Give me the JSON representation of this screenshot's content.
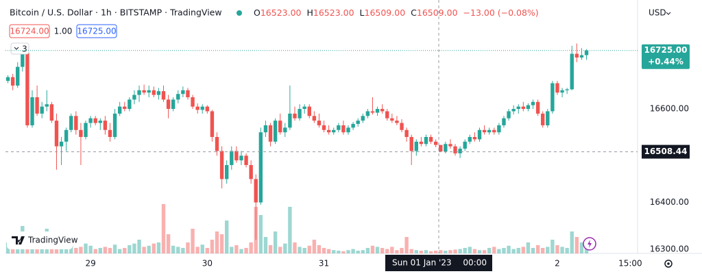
{
  "header": {
    "title": "Bitcoin / U.S. Dollar · 1h · BITSTAMP · TradingView",
    "ohlc": [
      {
        "key": "O",
        "value": "16523.00"
      },
      {
        "key": "H",
        "value": "16523.00"
      },
      {
        "key": "L",
        "value": "16509.00"
      },
      {
        "key": "C",
        "value": "16509.00"
      }
    ],
    "change": "−13.00 (−0.08%)",
    "bid": "16724.00",
    "spread": "1.00",
    "ask": "16725.00",
    "indicators": "3",
    "currency": "USD",
    "logo": "TradingView"
  },
  "chart_data": {
    "type": "candlestick",
    "categories": [
      null,
      null,
      null,
      null,
      null,
      null,
      null,
      null,
      null,
      null,
      null,
      null,
      null,
      null,
      null,
      null,
      null,
      "29",
      null,
      null,
      null,
      null,
      null,
      null,
      null,
      null,
      null,
      null,
      null,
      null,
      null,
      null,
      null,
      null,
      null,
      null,
      null,
      null,
      null,
      null,
      null,
      "30",
      null,
      null,
      null,
      null,
      null,
      null,
      null,
      null,
      null,
      null,
      null,
      null,
      null,
      null,
      null,
      null,
      null,
      null,
      null,
      null,
      null,
      null,
      null,
      "31",
      null,
      null,
      null,
      null,
      null,
      null,
      null,
      null,
      null,
      null,
      null,
      null,
      null,
      null,
      null,
      null,
      null,
      null,
      null,
      null,
      null,
      null,
      null,
      null,
      null,
      null,
      null,
      null,
      null,
      null,
      null,
      null,
      null,
      null,
      null,
      null,
      null,
      null,
      null,
      null,
      null,
      null,
      null,
      null,
      null,
      null,
      null,
      "2",
      null,
      null,
      null,
      null,
      null,
      null,
      null,
      null,
      null,
      null,
      null,
      null,
      null,
      null,
      "15:00",
      null
    ],
    "open": [
      16660,
      16668,
      16650,
      16690,
      16720,
      16565,
      16625,
      16590,
      16605,
      16610,
      16575,
      16520,
      16530,
      16555,
      16585,
      16555,
      16540,
      16570,
      16580,
      16570,
      16575,
      16555,
      16540,
      16590,
      16605,
      16600,
      16620,
      16630,
      16640,
      16635,
      16640,
      16630,
      16638,
      16620,
      16600,
      16620,
      16632,
      16640,
      16625,
      16605,
      16598,
      16605,
      16595,
      16540,
      16510,
      16450,
      16480,
      16510,
      16490,
      16500,
      16480,
      16450,
      16400,
      16550,
      16565,
      16530,
      16575,
      16550,
      16560,
      16590,
      16580,
      16600,
      16605,
      16585,
      16575,
      16565,
      16555,
      16550,
      16555,
      16565,
      16550,
      16560,
      16568,
      16575,
      16585,
      16595,
      16592,
      16600,
      16595,
      16580,
      16575,
      16570,
      16555,
      16540,
      16510,
      16530,
      16525,
      16540,
      16530,
      16523,
      16509,
      16525,
      16520,
      16505,
      16515,
      16530,
      16540,
      16535,
      16555,
      16550,
      16555,
      16550,
      16565,
      16580,
      16595,
      16600,
      16605,
      16600,
      16608,
      16615,
      16590,
      16565,
      16595,
      16655,
      16635,
      16640,
      16642,
      16718,
      16710,
      16715,
      null,
      null,
      null,
      null,
      null,
      null,
      null,
      null,
      null,
      null
    ],
    "high": [
      16672,
      16675,
      16700,
      16730,
      16728,
      16640,
      16650,
      16615,
      16640,
      16615,
      16590,
      16540,
      16560,
      16590,
      16595,
      16570,
      16575,
      16585,
      16585,
      16580,
      16585,
      16570,
      16600,
      16615,
      16615,
      16625,
      16640,
      16650,
      16652,
      16650,
      16648,
      16645,
      16650,
      16630,
      16625,
      16640,
      16648,
      16645,
      16630,
      16612,
      16610,
      16608,
      16598,
      16550,
      16520,
      16490,
      16520,
      16520,
      16510,
      16505,
      16490,
      16460,
      16560,
      16575,
      16570,
      16580,
      16590,
      16570,
      16650,
      16605,
      16610,
      16610,
      16610,
      16595,
      16590,
      16575,
      16565,
      16560,
      16570,
      16575,
      16565,
      16572,
      16580,
      16590,
      16600,
      16625,
      16605,
      16610,
      16600,
      16590,
      16585,
      16578,
      16560,
      16545,
      16535,
      16540,
      16545,
      16545,
      16535,
      16523,
      16530,
      16535,
      16525,
      16520,
      16535,
      16545,
      16550,
      16560,
      16565,
      16560,
      16560,
      16570,
      16585,
      16600,
      16608,
      16610,
      16615,
      16612,
      16620,
      16620,
      16595,
      16600,
      16660,
      16660,
      16645,
      16645,
      16735,
      16740,
      16730,
      16728,
      null,
      null,
      null,
      null,
      null,
      null,
      null,
      null,
      null,
      null
    ],
    "low": [
      16655,
      16640,
      16645,
      16680,
      16560,
      16560,
      16585,
      16580,
      16595,
      16570,
      16470,
      16480,
      16510,
      16550,
      16545,
      16480,
      16535,
      16560,
      16565,
      16555,
      16545,
      16530,
      16535,
      16585,
      16595,
      16595,
      16610,
      16615,
      16630,
      16625,
      16625,
      16620,
      16615,
      16580,
      16595,
      16612,
      16625,
      16620,
      16600,
      16590,
      16590,
      16590,
      16530,
      16500,
      16430,
      16440,
      16470,
      16485,
      16480,
      16475,
      16440,
      16320,
      16395,
      16540,
      16520,
      16525,
      16545,
      16540,
      16555,
      16575,
      16575,
      16590,
      16580,
      16570,
      16560,
      16550,
      16545,
      16545,
      16550,
      16545,
      16545,
      16555,
      16562,
      16570,
      16580,
      16588,
      16585,
      16590,
      16575,
      16570,
      16565,
      16550,
      16530,
      16480,
      16500,
      16520,
      16520,
      16525,
      16518,
      16509,
      16505,
      16515,
      16500,
      16495,
      16510,
      16525,
      16530,
      16530,
      16545,
      16545,
      16545,
      16545,
      16560,
      16575,
      16588,
      16590,
      16595,
      16595,
      16600,
      16585,
      16560,
      16560,
      16590,
      16630,
      16625,
      16632,
      16640,
      16700,
      16705,
      16705,
      null,
      null,
      null,
      null,
      null,
      null,
      null,
      null,
      null,
      null
    ],
    "close": [
      16668,
      16650,
      16690,
      16720,
      16565,
      16625,
      16590,
      16605,
      16610,
      16575,
      16520,
      16530,
      16555,
      16585,
      16555,
      16540,
      16570,
      16580,
      16570,
      16575,
      16555,
      16540,
      16590,
      16605,
      16600,
      16620,
      16630,
      16640,
      16635,
      16640,
      16630,
      16638,
      16620,
      16600,
      16620,
      16632,
      16640,
      16625,
      16605,
      16598,
      16605,
      16595,
      16540,
      16510,
      16450,
      16480,
      16510,
      16490,
      16500,
      16480,
      16450,
      16400,
      16550,
      16565,
      16530,
      16575,
      16550,
      16560,
      16590,
      16580,
      16600,
      16605,
      16585,
      16575,
      16565,
      16555,
      16550,
      16555,
      16565,
      16550,
      16560,
      16568,
      16575,
      16585,
      16595,
      16592,
      16600,
      16595,
      16580,
      16575,
      16570,
      16555,
      16540,
      16510,
      16530,
      16525,
      16540,
      16530,
      16523,
      16509,
      16525,
      16520,
      16505,
      16515,
      16530,
      16540,
      16535,
      16555,
      16550,
      16555,
      16550,
      16565,
      16580,
      16595,
      16600,
      16605,
      16600,
      16608,
      16615,
      16590,
      16565,
      16595,
      16655,
      16635,
      16640,
      16642,
      16718,
      16710,
      16715,
      16725,
      null,
      null,
      null,
      null,
      null,
      null,
      null,
      null,
      null,
      null
    ],
    "volume": [
      20,
      18,
      25,
      50,
      38,
      30,
      15,
      12,
      45,
      12,
      25,
      12,
      10,
      14,
      10,
      12,
      18,
      14,
      8,
      10,
      12,
      10,
      16,
      8,
      10,
      15,
      18,
      25,
      12,
      14,
      18,
      20,
      90,
      35,
      14,
      12,
      10,
      20,
      45,
      12,
      16,
      10,
      25,
      40,
      35,
      60,
      12,
      15,
      8,
      10,
      20,
      85,
      70,
      30,
      15,
      40,
      12,
      18,
      85,
      20,
      12,
      10,
      14,
      25,
      15,
      10,
      8,
      6,
      5,
      4,
      6,
      8,
      5,
      6,
      10,
      14,
      12,
      10,
      8,
      12,
      6,
      10,
      30,
      8,
      6,
      5,
      6,
      4,
      5,
      6,
      5,
      6,
      7,
      8,
      10,
      12,
      8,
      6,
      6,
      10,
      12,
      8,
      10,
      14,
      8,
      10,
      12,
      20,
      10,
      15,
      10,
      12,
      25,
      15,
      12,
      10,
      40,
      30,
      20,
      12,
      null,
      null,
      null,
      null,
      null,
      null,
      null,
      null,
      null,
      null
    ],
    "volume_lim": [
      0,
      100
    ],
    "up_color": "#26a69a",
    "down_color": "#ef5350",
    "ylim": [
      16291,
      16833
    ],
    "yticks": [
      {
        "value": 16300,
        "label": "16300.00"
      },
      {
        "value": 16400,
        "label": "16400.00"
      },
      {
        "value": 16600,
        "label": "16600.00"
      }
    ],
    "last_price": {
      "value": 16725,
      "label": "16725.00",
      "change": "+0.44%"
    },
    "crosshair": {
      "price": 16508.44,
      "date": "Sun 01 Jan '23",
      "time": "00:00"
    }
  }
}
